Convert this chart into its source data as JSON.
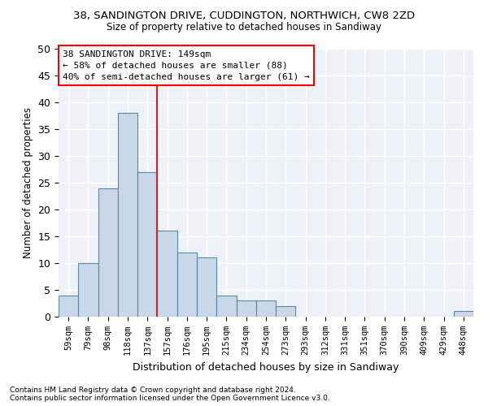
{
  "title1": "38, SANDINGTON DRIVE, CUDDINGTON, NORTHWICH, CW8 2ZD",
  "title2": "Size of property relative to detached houses in Sandiway",
  "xlabel": "Distribution of detached houses by size in Sandiway",
  "ylabel": "Number of detached properties",
  "footer1": "Contains HM Land Registry data © Crown copyright and database right 2024.",
  "footer2": "Contains public sector information licensed under the Open Government Licence v3.0.",
  "annotation_line1": "38 SANDINGTON DRIVE: 149sqm",
  "annotation_line2": "← 58% of detached houses are smaller (88)",
  "annotation_line3": "40% of semi-detached houses are larger (61) →",
  "bar_color": "#c8d8e8",
  "bar_edge_color": "#5588aa",
  "vline_color": "#cc2222",
  "categories": [
    "59sqm",
    "79sqm",
    "98sqm",
    "118sqm",
    "137sqm",
    "157sqm",
    "176sqm",
    "195sqm",
    "215sqm",
    "234sqm",
    "254sqm",
    "273sqm",
    "293sqm",
    "312sqm",
    "331sqm",
    "351sqm",
    "370sqm",
    "390sqm",
    "409sqm",
    "429sqm",
    "448sqm"
  ],
  "values": [
    4,
    10,
    24,
    38,
    27,
    16,
    12,
    11,
    4,
    3,
    3,
    2,
    0,
    0,
    0,
    0,
    0,
    0,
    0,
    0,
    1
  ],
  "ylim": [
    0,
    50
  ],
  "yticks": [
    0,
    5,
    10,
    15,
    20,
    25,
    30,
    35,
    40,
    45,
    50
  ],
  "vline_category_index": 4
}
